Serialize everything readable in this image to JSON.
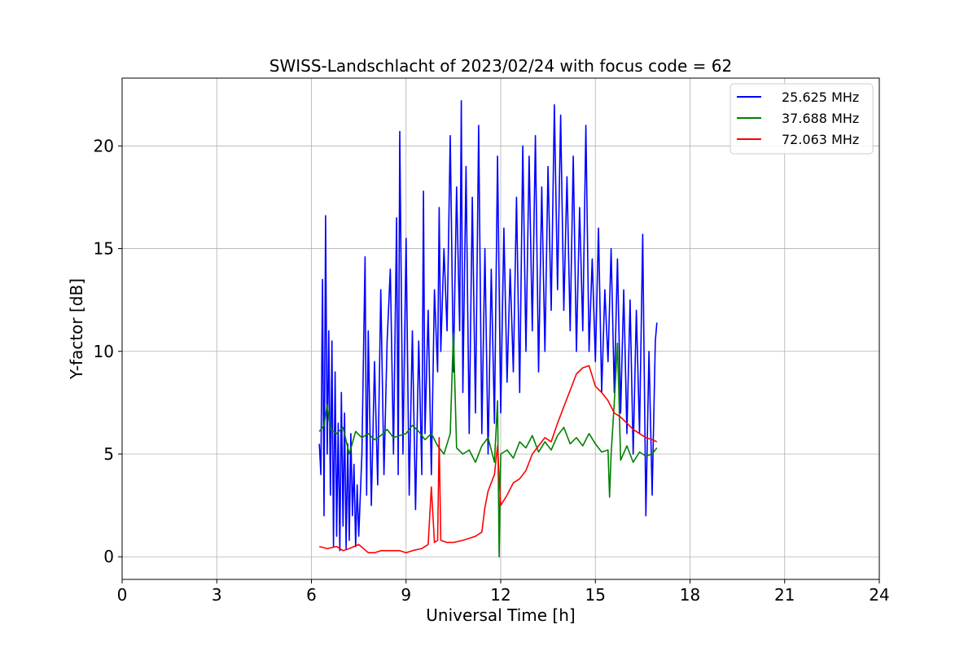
{
  "chart_data": {
    "type": "line",
    "title": "SWISS-Landschlacht of 2023/02/24 with focus code = 62",
    "xlabel": "Universal Time [h]",
    "ylabel": "Y-factor [dB]",
    "xlim": [
      0,
      24
    ],
    "ylim": [
      -1.1,
      23.3
    ],
    "xticks": [
      0,
      3,
      6,
      9,
      12,
      15,
      18,
      21,
      24
    ],
    "yticks": [
      0,
      5,
      10,
      15,
      20
    ],
    "grid": true,
    "legend_position": "top-right",
    "series": [
      {
        "name": "25.625 MHz",
        "color": "#0000ff",
        "x": [
          6.25,
          6.3,
          6.35,
          6.4,
          6.45,
          6.5,
          6.55,
          6.6,
          6.65,
          6.7,
          6.75,
          6.8,
          6.85,
          6.9,
          6.95,
          7.0,
          7.05,
          7.1,
          7.15,
          7.2,
          7.25,
          7.3,
          7.35,
          7.4,
          7.45,
          7.5,
          7.6,
          7.7,
          7.75,
          7.8,
          7.9,
          8.0,
          8.1,
          8.2,
          8.3,
          8.4,
          8.5,
          8.6,
          8.7,
          8.75,
          8.8,
          8.9,
          9.0,
          9.1,
          9.2,
          9.3,
          9.4,
          9.5,
          9.55,
          9.6,
          9.7,
          9.8,
          9.9,
          10.0,
          10.05,
          10.1,
          10.2,
          10.3,
          10.4,
          10.5,
          10.6,
          10.7,
          10.75,
          10.8,
          10.9,
          11.0,
          11.1,
          11.2,
          11.3,
          11.4,
          11.5,
          11.6,
          11.7,
          11.8,
          11.9,
          12.0,
          12.1,
          12.2,
          12.3,
          12.4,
          12.5,
          12.6,
          12.7,
          12.8,
          12.9,
          13.0,
          13.1,
          13.2,
          13.3,
          13.4,
          13.5,
          13.6,
          13.7,
          13.8,
          13.9,
          14.0,
          14.1,
          14.2,
          14.3,
          14.4,
          14.5,
          14.6,
          14.7,
          14.8,
          14.9,
          15.0,
          15.1,
          15.2,
          15.3,
          15.4,
          15.5,
          15.6,
          15.7,
          15.8,
          15.9,
          16.0,
          16.1,
          16.2,
          16.3,
          16.4,
          16.5,
          16.6,
          16.7,
          16.8,
          16.9,
          16.95
        ],
        "y": [
          5.5,
          4.0,
          13.5,
          2.0,
          16.6,
          5.0,
          11.0,
          3.0,
          10.5,
          0.5,
          9.0,
          1.0,
          6.5,
          0.3,
          8.0,
          1.5,
          7.0,
          0.4,
          5.5,
          0.8,
          6.0,
          2.0,
          4.5,
          0.5,
          3.5,
          1.0,
          5.0,
          14.6,
          3.0,
          11.0,
          2.5,
          9.5,
          3.5,
          13.0,
          4.0,
          10.5,
          14.0,
          5.0,
          16.5,
          4.0,
          20.7,
          5.0,
          15.5,
          3.0,
          11.0,
          2.3,
          10.5,
          4.0,
          17.8,
          6.0,
          12.0,
          4.0,
          13.0,
          9.0,
          17.0,
          10.0,
          15.0,
          11.0,
          20.5,
          9.0,
          18.0,
          11.0,
          22.2,
          8.0,
          19.0,
          6.0,
          17.5,
          7.0,
          21.0,
          6.0,
          15.0,
          5.0,
          14.0,
          6.5,
          19.5,
          7.0,
          16.0,
          8.5,
          14.0,
          9.0,
          17.5,
          8.0,
          20.0,
          10.0,
          19.5,
          11.0,
          20.5,
          9.0,
          18.0,
          10.0,
          19.0,
          12.0,
          22.0,
          13.0,
          21.5,
          12.0,
          18.5,
          11.0,
          19.5,
          10.0,
          17.0,
          11.0,
          21.0,
          10.0,
          14.5,
          9.5,
          16.0,
          8.0,
          13.0,
          9.5,
          15.0,
          8.0,
          14.5,
          7.0,
          13.0,
          6.0,
          12.5,
          5.0,
          12.0,
          6.0,
          15.7,
          2.0,
          10.0,
          3.0,
          10.5,
          11.4
        ]
      },
      {
        "name": "37.688 MHz",
        "color": "#008000",
        "x": [
          6.25,
          6.4,
          6.5,
          6.6,
          6.8,
          7.0,
          7.2,
          7.4,
          7.6,
          7.8,
          8.0,
          8.2,
          8.4,
          8.6,
          8.8,
          9.0,
          9.2,
          9.4,
          9.6,
          9.8,
          10.0,
          10.2,
          10.4,
          10.5,
          10.6,
          10.8,
          11.0,
          11.2,
          11.4,
          11.6,
          11.8,
          11.9,
          11.95,
          12.0,
          12.2,
          12.4,
          12.6,
          12.8,
          13.0,
          13.2,
          13.4,
          13.6,
          13.8,
          14.0,
          14.2,
          14.4,
          14.6,
          14.8,
          15.0,
          15.2,
          15.4,
          15.45,
          15.5,
          15.6,
          15.7,
          15.8,
          16.0,
          16.2,
          16.4,
          16.6,
          16.8,
          16.95
        ],
        "y": [
          6.1,
          6.4,
          7.4,
          6.2,
          6.0,
          6.3,
          5.0,
          6.1,
          5.8,
          6.0,
          5.7,
          5.9,
          6.2,
          5.8,
          5.9,
          6.0,
          6.4,
          6.1,
          5.7,
          6.0,
          5.4,
          5.0,
          6.0,
          10.9,
          5.3,
          5.0,
          5.2,
          4.6,
          5.4,
          5.8,
          4.6,
          7.6,
          0.0,
          5.0,
          5.2,
          4.8,
          5.6,
          5.3,
          5.9,
          5.1,
          5.6,
          5.2,
          5.9,
          6.3,
          5.5,
          5.8,
          5.4,
          6.0,
          5.5,
          5.1,
          5.2,
          2.9,
          5.0,
          7.5,
          10.4,
          4.7,
          5.4,
          4.6,
          5.1,
          4.9,
          5.0,
          5.3
        ]
      },
      {
        "name": "72.063 MHz",
        "color": "#ff0000",
        "x": [
          6.25,
          6.5,
          6.8,
          7.0,
          7.2,
          7.5,
          7.8,
          8.0,
          8.2,
          8.5,
          8.8,
          9.0,
          9.2,
          9.5,
          9.7,
          9.8,
          9.9,
          10.0,
          10.05,
          10.1,
          10.3,
          10.5,
          10.8,
          11.0,
          11.2,
          11.4,
          11.5,
          11.6,
          11.8,
          11.9,
          12.0,
          12.2,
          12.4,
          12.6,
          12.8,
          13.0,
          13.2,
          13.4,
          13.6,
          13.8,
          14.0,
          14.2,
          14.4,
          14.6,
          14.8,
          15.0,
          15.2,
          15.4,
          15.6,
          15.8,
          16.0,
          16.2,
          16.4,
          16.6,
          16.8,
          16.95
        ],
        "y": [
          0.5,
          0.4,
          0.5,
          0.3,
          0.4,
          0.6,
          0.2,
          0.2,
          0.3,
          0.3,
          0.3,
          0.2,
          0.3,
          0.4,
          0.6,
          3.4,
          0.7,
          0.8,
          5.8,
          0.8,
          0.7,
          0.7,
          0.8,
          0.9,
          1.0,
          1.2,
          2.4,
          3.2,
          4.0,
          5.4,
          2.5,
          3.0,
          3.6,
          3.8,
          4.2,
          5.0,
          5.4,
          5.8,
          5.6,
          6.5,
          7.3,
          8.1,
          8.9,
          9.2,
          9.3,
          8.3,
          8.0,
          7.6,
          7.0,
          6.8,
          6.5,
          6.2,
          6.0,
          5.8,
          5.7,
          5.6
        ]
      }
    ]
  }
}
